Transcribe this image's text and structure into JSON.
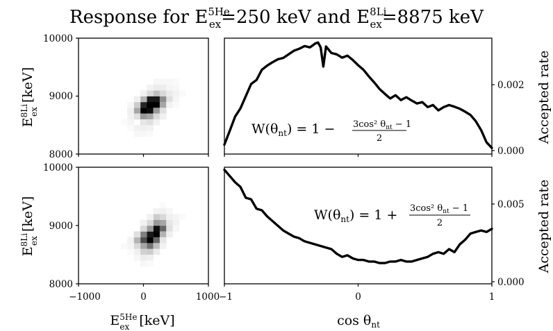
{
  "title": {
    "prefix": "Response for E",
    "sup1": "5He",
    "sub1": "ex",
    "mid": "=250 keV and E",
    "sup2": "8Li",
    "sub2": "ex",
    "suffix": "=8875 keV"
  },
  "colors": {
    "curve": "#000000",
    "frame": "#000000",
    "heatmap_max": "#000000",
    "background": "#ffffff"
  },
  "chart_data": [
    {
      "type": "heatmap",
      "name": "top-left response map",
      "xlim": [
        -1000,
        1000
      ],
      "ylim": [
        8000,
        10000
      ],
      "xlabel": "E ex 5He [keV]",
      "ylabel": "E ex 8Li [keV]",
      "x_ticks": [],
      "y_ticks": [
        "8000",
        "9000",
        "10000"
      ],
      "cells": [
        [
          0,
          8750,
          1.0
        ],
        [
          100,
          8750,
          0.95
        ],
        [
          0,
          8850,
          0.85
        ],
        [
          100,
          8850,
          1.0
        ],
        [
          200,
          8850,
          1.0
        ],
        [
          100,
          8950,
          0.9
        ],
        [
          200,
          8950,
          0.9
        ],
        [
          300,
          8950,
          0.45
        ],
        [
          -100,
          8750,
          0.35
        ],
        [
          -100,
          8650,
          0.12
        ],
        [
          0,
          8650,
          0.4
        ],
        [
          100,
          8650,
          0.35
        ],
        [
          200,
          8750,
          0.4
        ],
        [
          300,
          8850,
          0.35
        ],
        [
          200,
          9050,
          0.25
        ],
        [
          300,
          9050,
          0.15
        ],
        [
          -100,
          8850,
          0.2
        ],
        [
          0,
          8950,
          0.3
        ],
        [
          100,
          9050,
          0.15
        ],
        [
          0,
          8550,
          0.1
        ],
        [
          100,
          8550,
          0.12
        ],
        [
          200,
          8650,
          0.15
        ],
        [
          300,
          8750,
          0.12
        ],
        [
          400,
          8950,
          0.12
        ],
        [
          400,
          9050,
          0.08
        ],
        [
          300,
          9150,
          0.07
        ],
        [
          200,
          9150,
          0.08
        ],
        [
          -200,
          8650,
          0.05
        ],
        [
          -200,
          8550,
          0.04
        ],
        [
          -100,
          8450,
          0.05
        ],
        [
          0,
          8450,
          0.06
        ],
        [
          100,
          8450,
          0.05
        ],
        [
          300,
          8650,
          0.06
        ],
        [
          400,
          8850,
          0.05
        ],
        [
          500,
          8950,
          0.04
        ],
        [
          500,
          9050,
          0.05
        ],
        [
          400,
          9150,
          0.04
        ],
        [
          100,
          9150,
          0.05
        ],
        [
          -100,
          8950,
          0.06
        ],
        [
          -200,
          8750,
          0.06
        ],
        [
          200,
          8550,
          0.05
        ],
        [
          -100,
          8350,
          0.03
        ],
        [
          0,
          8350,
          0.03
        ],
        [
          300,
          9250,
          0.03
        ],
        [
          400,
          9250,
          0.03
        ],
        [
          500,
          9150,
          0.03
        ],
        [
          200,
          9250,
          0.03
        ],
        [
          0,
          9050,
          0.05
        ],
        [
          -300,
          8550,
          0.02
        ],
        [
          -200,
          8450,
          0.02
        ],
        [
          100,
          8350,
          0.02
        ],
        [
          500,
          8850,
          0.02
        ],
        [
          600,
          9050,
          0.02
        ],
        [
          500,
          9250,
          0.02
        ],
        [
          -200,
          8850,
          0.03
        ]
      ]
    },
    {
      "type": "line",
      "name": "top-right accepted rate",
      "xlim": [
        -1,
        1
      ],
      "ylim": [
        0,
        0.0033
      ],
      "ylabel": "Accepted rate",
      "y_ticks": [
        "0.000",
        "0.002"
      ],
      "annotation": {
        "lhs": "W(θ",
        "lhs_sub": "nt",
        "rhs": ") = 1 − ",
        "num": "3cos² θ",
        "num_sub": "nt",
        "num_tail": " − 1",
        "den": "2"
      },
      "x": [
        -1.0,
        -0.96,
        -0.92,
        -0.88,
        -0.84,
        -0.8,
        -0.76,
        -0.72,
        -0.68,
        -0.64,
        -0.6,
        -0.56,
        -0.52,
        -0.48,
        -0.44,
        -0.4,
        -0.36,
        -0.32,
        -0.3,
        -0.28,
        -0.26,
        -0.24,
        -0.2,
        -0.16,
        -0.12,
        -0.08,
        -0.04,
        0.0,
        0.04,
        0.08,
        0.12,
        0.16,
        0.2,
        0.24,
        0.28,
        0.32,
        0.36,
        0.4,
        0.44,
        0.48,
        0.52,
        0.56,
        0.6,
        0.64,
        0.68,
        0.72,
        0.76,
        0.8,
        0.84,
        0.88,
        0.92,
        0.96,
        1.0
      ],
      "values": [
        0.00018,
        0.0006,
        0.00103,
        0.00128,
        0.00165,
        0.00202,
        0.00214,
        0.00245,
        0.00258,
        0.00268,
        0.00277,
        0.00281,
        0.00292,
        0.00303,
        0.00309,
        0.00317,
        0.00313,
        0.00325,
        0.00328,
        0.00313,
        0.00255,
        0.00316,
        0.00296,
        0.00292,
        0.00282,
        0.00288,
        0.00275,
        0.00259,
        0.00245,
        0.00225,
        0.00207,
        0.00187,
        0.00172,
        0.00158,
        0.00168,
        0.00153,
        0.00162,
        0.00152,
        0.00143,
        0.00147,
        0.00132,
        0.00138,
        0.00122,
        0.00132,
        0.00138,
        0.00133,
        0.00127,
        0.00118,
        0.00108,
        0.00089,
        0.00062,
        0.00025,
        8e-05
      ]
    },
    {
      "type": "heatmap",
      "name": "bottom-left response map",
      "xlim": [
        -1000,
        1000
      ],
      "ylim": [
        8000,
        10000
      ],
      "xlabel": "E ex 5He [keV]",
      "ylabel": "E ex 8Li [keV]",
      "x_ticks": [
        "−1000",
        "0",
        "1000"
      ],
      "y_ticks": [
        "8000",
        "9000",
        "10000"
      ],
      "cells": [
        [
          100,
          8750,
          1.0
        ],
        [
          200,
          8850,
          1.0
        ],
        [
          200,
          8950,
          0.95
        ],
        [
          100,
          8850,
          0.9
        ],
        [
          300,
          8950,
          0.6
        ],
        [
          300,
          9050,
          0.35
        ],
        [
          200,
          9050,
          0.4
        ],
        [
          0,
          8750,
          0.7
        ],
        [
          100,
          8650,
          0.55
        ],
        [
          0,
          8650,
          0.35
        ],
        [
          200,
          8750,
          0.6
        ],
        [
          0,
          8850,
          0.5
        ],
        [
          100,
          8950,
          0.4
        ],
        [
          200,
          9150,
          0.2
        ],
        [
          300,
          9150,
          0.15
        ],
        [
          -100,
          8650,
          0.15
        ],
        [
          -100,
          8750,
          0.3
        ],
        [
          200,
          8650,
          0.25
        ],
        [
          300,
          8850,
          0.3
        ],
        [
          100,
          8550,
          0.2
        ],
        [
          0,
          8550,
          0.18
        ],
        [
          100,
          9050,
          0.15
        ],
        [
          400,
          9050,
          0.1
        ],
        [
          400,
          8950,
          0.12
        ],
        [
          -100,
          8850,
          0.12
        ],
        [
          0,
          8950,
          0.15
        ],
        [
          400,
          9150,
          0.06
        ],
        [
          300,
          9250,
          0.06
        ],
        [
          200,
          9250,
          0.05
        ],
        [
          -100,
          8550,
          0.06
        ],
        [
          0,
          8450,
          0.07
        ],
        [
          100,
          8450,
          0.06
        ],
        [
          200,
          8550,
          0.08
        ],
        [
          300,
          8750,
          0.1
        ],
        [
          400,
          8850,
          0.06
        ],
        [
          500,
          9050,
          0.05
        ],
        [
          500,
          9150,
          0.04
        ],
        [
          100,
          9150,
          0.05
        ],
        [
          -200,
          8650,
          0.04
        ],
        [
          -200,
          8750,
          0.05
        ],
        [
          300,
          8650,
          0.05
        ],
        [
          0,
          9050,
          0.05
        ],
        [
          -100,
          8450,
          0.03
        ],
        [
          0,
          8350,
          0.03
        ],
        [
          100,
          8350,
          0.02
        ],
        [
          400,
          9250,
          0.03
        ],
        [
          500,
          8950,
          0.03
        ],
        [
          -200,
          8550,
          0.02
        ],
        [
          600,
          9150,
          0.02
        ],
        [
          300,
          9350,
          0.02
        ],
        [
          -300,
          8650,
          0.02
        ]
      ]
    },
    {
      "type": "line",
      "name": "bottom-right accepted rate",
      "xlim": [
        -1,
        1
      ],
      "ylim": [
        0,
        0.0074
      ],
      "xlabel": "cos θnt",
      "ylabel": "Accepted rate",
      "x_ticks": [
        "−1",
        "0",
        "1"
      ],
      "y_ticks": [
        "0.000",
        "0.005"
      ],
      "annotation": {
        "lhs": "W(θ",
        "lhs_sub": "nt",
        "rhs": ") = 1 + ",
        "num": "3cos² θ",
        "num_sub": "nt",
        "num_tail": " − 1",
        "den": "2"
      },
      "x": [
        -1.0,
        -0.96,
        -0.92,
        -0.88,
        -0.84,
        -0.8,
        -0.76,
        -0.72,
        -0.68,
        -0.64,
        -0.6,
        -0.56,
        -0.52,
        -0.48,
        -0.44,
        -0.4,
        -0.36,
        -0.32,
        -0.28,
        -0.24,
        -0.2,
        -0.16,
        -0.12,
        -0.08,
        -0.04,
        0.0,
        0.04,
        0.08,
        0.12,
        0.16,
        0.2,
        0.24,
        0.28,
        0.32,
        0.36,
        0.4,
        0.44,
        0.48,
        0.52,
        0.56,
        0.6,
        0.64,
        0.68,
        0.72,
        0.76,
        0.8,
        0.84,
        0.88,
        0.92,
        0.96,
        1.0
      ],
      "values": [
        0.0072,
        0.0068,
        0.0064,
        0.0061,
        0.0054,
        0.0053,
        0.0047,
        0.0046,
        0.0042,
        0.0039,
        0.0036,
        0.0033,
        0.0031,
        0.0029,
        0.0028,
        0.0026,
        0.0025,
        0.0024,
        0.0023,
        0.0022,
        0.0021,
        0.0018,
        0.0016,
        0.0017,
        0.0015,
        0.0014,
        0.0014,
        0.0013,
        0.0013,
        0.0012,
        0.0012,
        0.0013,
        0.0013,
        0.0014,
        0.0013,
        0.0013,
        0.0014,
        0.0015,
        0.0016,
        0.0018,
        0.0019,
        0.0018,
        0.0021,
        0.0019,
        0.0024,
        0.0027,
        0.0031,
        0.0032,
        0.0033,
        0.0032,
        0.0034
      ]
    }
  ]
}
